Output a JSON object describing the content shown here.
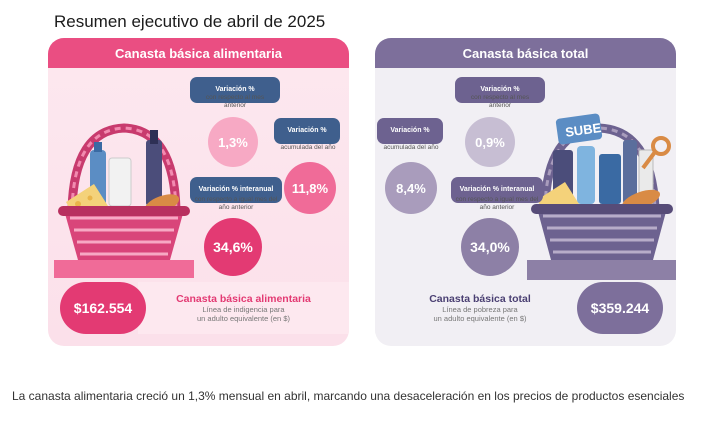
{
  "title": "Resumen ejecutivo de abril de 2025",
  "left": {
    "header": "Canasta básica alimentaria",
    "monthly": {
      "label": "Variación %",
      "sub": "con respecto al mes anterior",
      "value": "1,3%"
    },
    "accumulated": {
      "label": "Variación %",
      "sub": "acumulada del año",
      "value": "11,8%"
    },
    "interannual": {
      "label": "Variación % interanual",
      "sub": "con respecto a igual mes del año anterior",
      "value": "34,6%"
    },
    "amount": "$162.554",
    "box_title": "Canasta básica alimentaria",
    "box_sub1": "Línea de indigencia para",
    "box_sub2": "un adulto equivalente (en $)"
  },
  "right": {
    "header": "Canasta básica total",
    "monthly": {
      "label": "Variación %",
      "sub": "con respecto al mes anterior",
      "value": "0,9%"
    },
    "accumulated": {
      "label": "Variación %",
      "sub": "acumulada del año",
      "value": "8,4%"
    },
    "interannual": {
      "label": "Variación % interanual",
      "sub": "con respecto a igual mes del año anterior",
      "value": "34,0%"
    },
    "amount": "$359.244",
    "box_title": "Canasta básica total",
    "box_sub1": "Línea de pobreza para",
    "box_sub2": "un adulto equivalente (en $)",
    "card_text": "SUBE"
  },
  "caption": "La canasta alimentaria creció un 1,3% mensual en abril, marcando una desaceleración en los precios de productos esenciales",
  "colors": {
    "pink": "#e33a73",
    "purple": "#7d6f9b"
  }
}
